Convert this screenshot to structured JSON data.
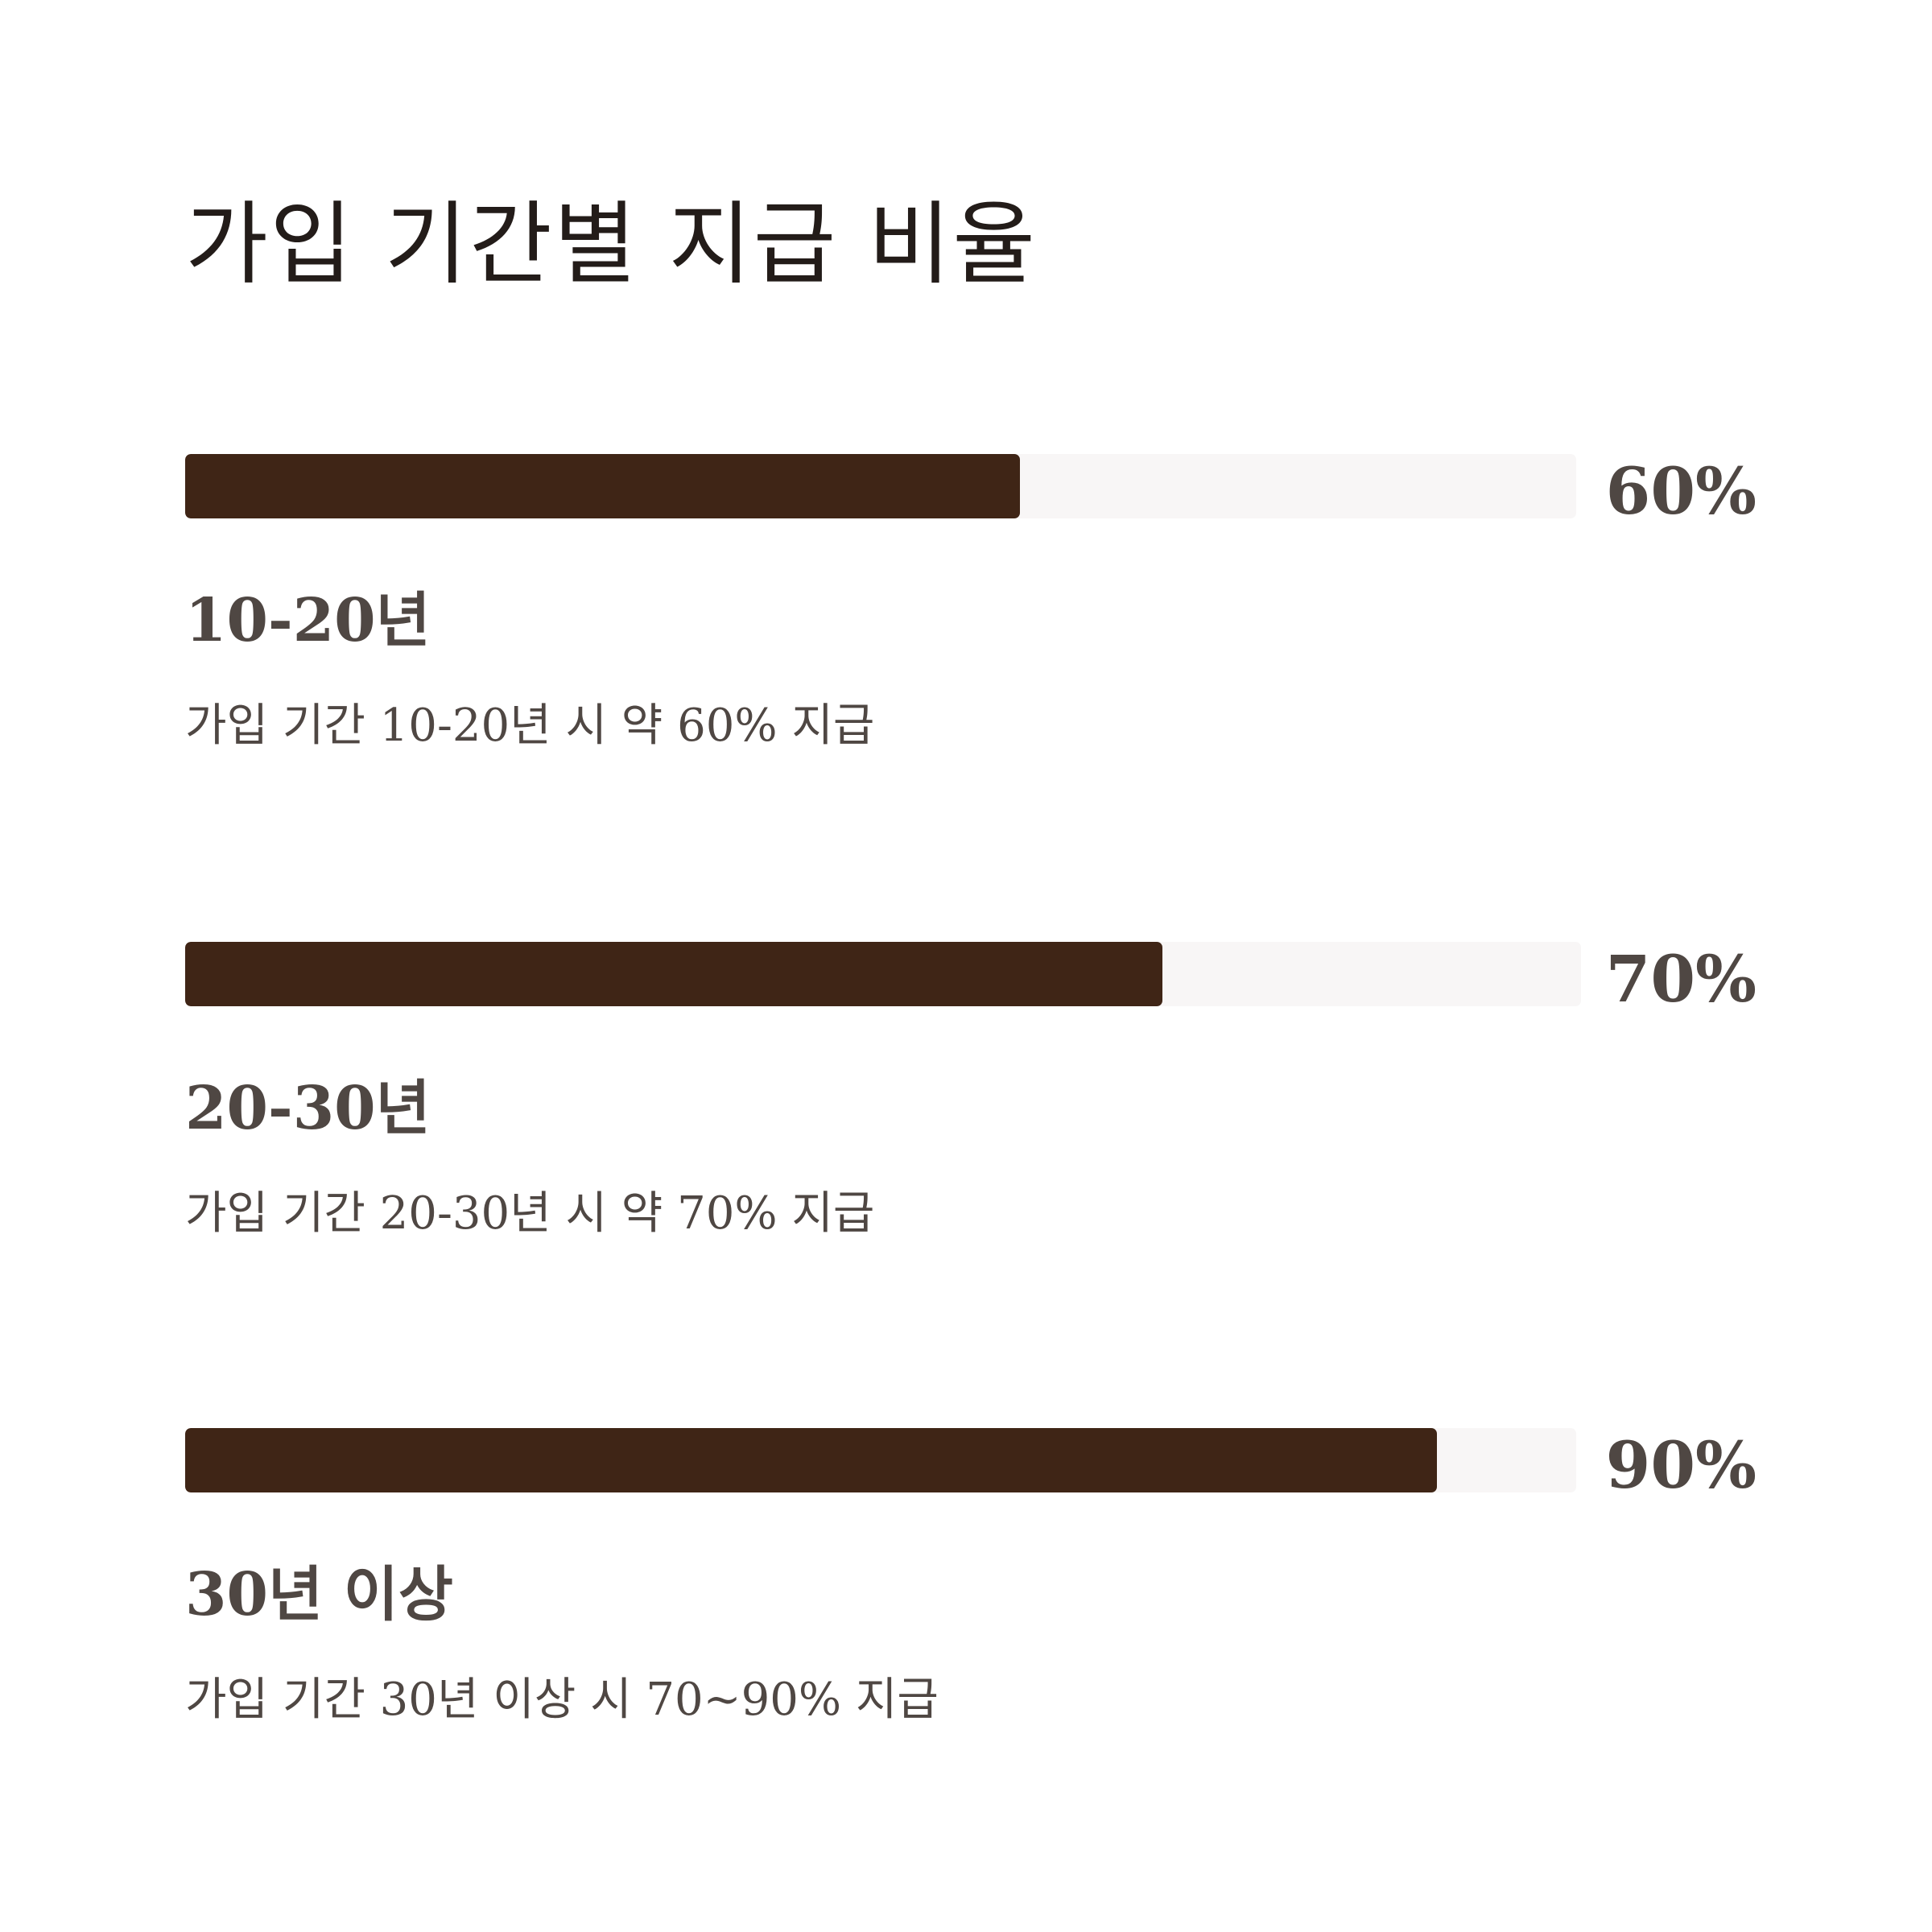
{
  "title": "가입 기간별 지급 비율",
  "colors": {
    "background": "#ffffff",
    "bar_fill": "#3f2516",
    "bar_track": "#f8f6f6",
    "title_text": "#231c19",
    "body_text": "#4f4743"
  },
  "chart_data": {
    "type": "bar",
    "orientation": "horizontal",
    "title": "가입 기간별 지급 비율",
    "categories": [
      "10-20년",
      "20-30년",
      "30년 이상"
    ],
    "values": [
      60,
      70,
      90
    ],
    "value_labels": [
      "60%",
      "70%",
      "90%"
    ],
    "descriptions": [
      "가입 기간 10-20년 시 약 60% 지급",
      "가입 기간 20-30년 시 약 70% 지급",
      "가입 기간 30년 이상 시 70~90% 지급"
    ],
    "xlim": [
      0,
      100
    ],
    "grid": false,
    "legend": "none"
  }
}
